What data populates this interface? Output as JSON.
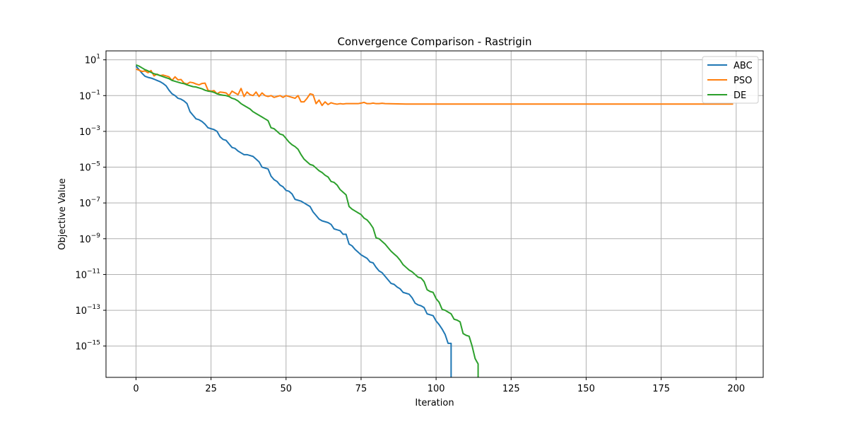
{
  "chart_data": {
    "type": "line",
    "title": "Convergence Comparison - Rastrigin",
    "xlabel": "Iteration",
    "ylabel": "Objective Value",
    "xlim": [
      -10,
      209
    ],
    "ylim_log10": [
      -16.75,
      1.5
    ],
    "yscale": "log",
    "x_ticks": [
      0,
      25,
      50,
      75,
      100,
      125,
      150,
      175,
      200
    ],
    "y_ticks_log10": [
      1,
      -1,
      -3,
      -5,
      -7,
      -9,
      -11,
      -13,
      -15
    ],
    "grid": true,
    "legend": {
      "placement": "top-right",
      "entries": [
        "ABC",
        "PSO",
        "DE"
      ]
    },
    "series": [
      {
        "name": "ABC",
        "color": "#1f77b4",
        "points_log10": [
          [
            0,
            0.65
          ],
          [
            1,
            0.45
          ],
          [
            2,
            0.25
          ],
          [
            3,
            0.08
          ],
          [
            4,
            0.02
          ],
          [
            5,
            -0.02
          ],
          [
            6,
            -0.08
          ],
          [
            7,
            -0.15
          ],
          [
            8,
            -0.22
          ],
          [
            9,
            -0.32
          ],
          [
            10,
            -0.45
          ],
          [
            11,
            -0.7
          ],
          [
            12,
            -0.9
          ],
          [
            13,
            -1.0
          ],
          [
            14,
            -1.15
          ],
          [
            15,
            -1.2
          ],
          [
            16,
            -1.3
          ],
          [
            17,
            -1.45
          ],
          [
            18,
            -1.9
          ],
          [
            19,
            -2.1
          ],
          [
            20,
            -2.3
          ],
          [
            21,
            -2.35
          ],
          [
            22,
            -2.45
          ],
          [
            23,
            -2.6
          ],
          [
            24,
            -2.8
          ],
          [
            25,
            -2.85
          ],
          [
            26,
            -2.9
          ],
          [
            27,
            -3.0
          ],
          [
            28,
            -3.3
          ],
          [
            29,
            -3.45
          ],
          [
            30,
            -3.5
          ],
          [
            31,
            -3.7
          ],
          [
            32,
            -3.9
          ],
          [
            33,
            -3.95
          ],
          [
            34,
            -4.1
          ],
          [
            35,
            -4.2
          ],
          [
            36,
            -4.3
          ],
          [
            37,
            -4.3
          ],
          [
            38,
            -4.35
          ],
          [
            39,
            -4.4
          ],
          [
            40,
            -4.55
          ],
          [
            41,
            -4.7
          ],
          [
            42,
            -5.0
          ],
          [
            43,
            -5.05
          ],
          [
            44,
            -5.1
          ],
          [
            45,
            -5.5
          ],
          [
            46,
            -5.7
          ],
          [
            47,
            -5.8
          ],
          [
            48,
            -6.0
          ],
          [
            49,
            -6.1
          ],
          [
            50,
            -6.3
          ],
          [
            51,
            -6.35
          ],
          [
            52,
            -6.5
          ],
          [
            53,
            -6.8
          ],
          [
            54,
            -6.85
          ],
          [
            55,
            -6.9
          ],
          [
            56,
            -7.0
          ],
          [
            57,
            -7.1
          ],
          [
            58,
            -7.2
          ],
          [
            59,
            -7.5
          ],
          [
            60,
            -7.7
          ],
          [
            61,
            -7.9
          ],
          [
            62,
            -8.0
          ],
          [
            63,
            -8.05
          ],
          [
            64,
            -8.1
          ],
          [
            65,
            -8.2
          ],
          [
            66,
            -8.45
          ],
          [
            67,
            -8.5
          ],
          [
            68,
            -8.55
          ],
          [
            69,
            -8.75
          ],
          [
            70,
            -8.75
          ],
          [
            71,
            -9.3
          ],
          [
            72,
            -9.4
          ],
          [
            73,
            -9.6
          ],
          [
            74,
            -9.75
          ],
          [
            75,
            -9.9
          ],
          [
            76,
            -10.0
          ],
          [
            77,
            -10.1
          ],
          [
            78,
            -10.3
          ],
          [
            79,
            -10.35
          ],
          [
            80,
            -10.6
          ],
          [
            81,
            -10.8
          ],
          [
            82,
            -10.9
          ],
          [
            83,
            -11.1
          ],
          [
            84,
            -11.3
          ],
          [
            85,
            -11.5
          ],
          [
            86,
            -11.55
          ],
          [
            87,
            -11.7
          ],
          [
            88,
            -11.8
          ],
          [
            89,
            -12.0
          ],
          [
            90,
            -12.05
          ],
          [
            91,
            -12.1
          ],
          [
            92,
            -12.3
          ],
          [
            93,
            -12.6
          ],
          [
            94,
            -12.7
          ],
          [
            95,
            -12.75
          ],
          [
            96,
            -12.85
          ],
          [
            97,
            -13.2
          ],
          [
            98,
            -13.25
          ],
          [
            99,
            -13.3
          ],
          [
            100,
            -13.6
          ],
          [
            101,
            -13.8
          ],
          [
            102,
            -14.05
          ],
          [
            103,
            -14.35
          ],
          [
            104,
            -14.85
          ],
          [
            105,
            -14.85
          ],
          [
            105,
            -16.75
          ]
        ]
      },
      {
        "name": "PSO",
        "color": "#ff7f0e",
        "points_log10": [
          [
            0,
            0.48
          ],
          [
            1,
            0.42
          ],
          [
            2,
            0.35
          ],
          [
            3,
            0.38
          ],
          [
            4,
            0.28
          ],
          [
            5,
            0.4
          ],
          [
            6,
            0.1
          ],
          [
            7,
            0.2
          ],
          [
            8,
            0.12
          ],
          [
            9,
            0.15
          ],
          [
            10,
            0.1
          ],
          [
            11,
            0.05
          ],
          [
            12,
            -0.15
          ],
          [
            13,
            0.05
          ],
          [
            14,
            -0.12
          ],
          [
            15,
            -0.1
          ],
          [
            16,
            -0.3
          ],
          [
            17,
            -0.35
          ],
          [
            18,
            -0.25
          ],
          [
            19,
            -0.28
          ],
          [
            20,
            -0.35
          ],
          [
            21,
            -0.4
          ],
          [
            22,
            -0.32
          ],
          [
            23,
            -0.3
          ],
          [
            24,
            -0.7
          ],
          [
            25,
            -0.75
          ],
          [
            26,
            -0.72
          ],
          [
            27,
            -0.9
          ],
          [
            28,
            -0.8
          ],
          [
            29,
            -0.82
          ],
          [
            30,
            -0.85
          ],
          [
            31,
            -1.0
          ],
          [
            32,
            -0.75
          ],
          [
            33,
            -0.85
          ],
          [
            34,
            -0.95
          ],
          [
            35,
            -0.6
          ],
          [
            36,
            -1.05
          ],
          [
            37,
            -0.8
          ],
          [
            38,
            -0.95
          ],
          [
            39,
            -1.0
          ],
          [
            40,
            -0.8
          ],
          [
            41,
            -1.05
          ],
          [
            42,
            -0.85
          ],
          [
            43,
            -1.0
          ],
          [
            44,
            -1.05
          ],
          [
            45,
            -1.0
          ],
          [
            46,
            -1.1
          ],
          [
            47,
            -1.05
          ],
          [
            48,
            -1.0
          ],
          [
            49,
            -1.1
          ],
          [
            50,
            -1.0
          ],
          [
            51,
            -1.05
          ],
          [
            52,
            -1.1
          ],
          [
            53,
            -1.15
          ],
          [
            54,
            -1.0
          ],
          [
            55,
            -1.35
          ],
          [
            56,
            -1.35
          ],
          [
            57,
            -1.15
          ],
          [
            58,
            -0.9
          ],
          [
            59,
            -0.95
          ],
          [
            60,
            -1.45
          ],
          [
            61,
            -1.25
          ],
          [
            62,
            -1.55
          ],
          [
            63,
            -1.35
          ],
          [
            64,
            -1.5
          ],
          [
            65,
            -1.4
          ],
          [
            66,
            -1.45
          ],
          [
            67,
            -1.48
          ],
          [
            68,
            -1.45
          ],
          [
            69,
            -1.47
          ],
          [
            70,
            -1.45
          ],
          [
            72,
            -1.45
          ],
          [
            74,
            -1.45
          ],
          [
            75,
            -1.42
          ],
          [
            76,
            -1.38
          ],
          [
            77,
            -1.45
          ],
          [
            78,
            -1.45
          ],
          [
            79,
            -1.42
          ],
          [
            80,
            -1.45
          ],
          [
            81,
            -1.45
          ],
          [
            82,
            -1.43
          ],
          [
            83,
            -1.45
          ],
          [
            90,
            -1.47
          ],
          [
            120,
            -1.47
          ],
          [
            160,
            -1.47
          ],
          [
            199,
            -1.47
          ]
        ]
      },
      {
        "name": "DE",
        "color": "#2ca02c",
        "points_log10": [
          [
            0,
            0.72
          ],
          [
            1,
            0.65
          ],
          [
            2,
            0.55
          ],
          [
            3,
            0.45
          ],
          [
            4,
            0.38
          ],
          [
            5,
            0.3
          ],
          [
            6,
            0.22
          ],
          [
            7,
            0.18
          ],
          [
            8,
            0.12
          ],
          [
            9,
            0.06
          ],
          [
            10,
            0.0
          ],
          [
            11,
            -0.05
          ],
          [
            12,
            -0.15
          ],
          [
            13,
            -0.2
          ],
          [
            14,
            -0.25
          ],
          [
            15,
            -0.3
          ],
          [
            16,
            -0.33
          ],
          [
            17,
            -0.4
          ],
          [
            18,
            -0.45
          ],
          [
            19,
            -0.5
          ],
          [
            20,
            -0.52
          ],
          [
            21,
            -0.57
          ],
          [
            22,
            -0.62
          ],
          [
            23,
            -0.7
          ],
          [
            24,
            -0.75
          ],
          [
            25,
            -0.77
          ],
          [
            26,
            -0.82
          ],
          [
            27,
            -0.9
          ],
          [
            28,
            -0.95
          ],
          [
            29,
            -0.98
          ],
          [
            30,
            -1.0
          ],
          [
            31,
            -1.05
          ],
          [
            32,
            -1.15
          ],
          [
            33,
            -1.2
          ],
          [
            34,
            -1.3
          ],
          [
            35,
            -1.45
          ],
          [
            36,
            -1.55
          ],
          [
            37,
            -1.65
          ],
          [
            38,
            -1.75
          ],
          [
            39,
            -1.9
          ],
          [
            40,
            -2.0
          ],
          [
            41,
            -2.1
          ],
          [
            42,
            -2.2
          ],
          [
            43,
            -2.3
          ],
          [
            44,
            -2.4
          ],
          [
            45,
            -2.8
          ],
          [
            46,
            -2.85
          ],
          [
            47,
            -3.0
          ],
          [
            48,
            -3.15
          ],
          [
            49,
            -3.2
          ],
          [
            50,
            -3.4
          ],
          [
            51,
            -3.6
          ],
          [
            52,
            -3.75
          ],
          [
            53,
            -3.85
          ],
          [
            54,
            -4.0
          ],
          [
            55,
            -4.3
          ],
          [
            56,
            -4.55
          ],
          [
            57,
            -4.7
          ],
          [
            58,
            -4.85
          ],
          [
            59,
            -4.9
          ],
          [
            60,
            -5.05
          ],
          [
            61,
            -5.2
          ],
          [
            62,
            -5.3
          ],
          [
            63,
            -5.45
          ],
          [
            64,
            -5.55
          ],
          [
            65,
            -5.8
          ],
          [
            66,
            -5.85
          ],
          [
            67,
            -6.0
          ],
          [
            68,
            -6.25
          ],
          [
            69,
            -6.4
          ],
          [
            70,
            -6.55
          ],
          [
            71,
            -7.2
          ],
          [
            72,
            -7.35
          ],
          [
            73,
            -7.45
          ],
          [
            74,
            -7.55
          ],
          [
            75,
            -7.65
          ],
          [
            76,
            -7.85
          ],
          [
            77,
            -7.95
          ],
          [
            78,
            -8.15
          ],
          [
            79,
            -8.4
          ],
          [
            80,
            -8.95
          ],
          [
            81,
            -9.0
          ],
          [
            82,
            -9.15
          ],
          [
            83,
            -9.3
          ],
          [
            84,
            -9.5
          ],
          [
            85,
            -9.7
          ],
          [
            86,
            -9.85
          ],
          [
            87,
            -10.0
          ],
          [
            88,
            -10.2
          ],
          [
            89,
            -10.45
          ],
          [
            90,
            -10.6
          ],
          [
            91,
            -10.75
          ],
          [
            92,
            -10.85
          ],
          [
            93,
            -11.0
          ],
          [
            94,
            -11.15
          ],
          [
            95,
            -11.2
          ],
          [
            96,
            -11.4
          ],
          [
            97,
            -11.85
          ],
          [
            98,
            -11.95
          ],
          [
            99,
            -12.0
          ],
          [
            100,
            -12.35
          ],
          [
            101,
            -12.55
          ],
          [
            102,
            -12.95
          ],
          [
            103,
            -13.0
          ],
          [
            104,
            -13.1
          ],
          [
            105,
            -13.2
          ],
          [
            106,
            -13.5
          ],
          [
            107,
            -13.55
          ],
          [
            108,
            -13.65
          ],
          [
            109,
            -14.3
          ],
          [
            110,
            -14.4
          ],
          [
            111,
            -14.45
          ],
          [
            112,
            -15.0
          ],
          [
            113,
            -15.7
          ],
          [
            114,
            -16.0
          ],
          [
            114,
            -16.75
          ]
        ]
      }
    ]
  }
}
